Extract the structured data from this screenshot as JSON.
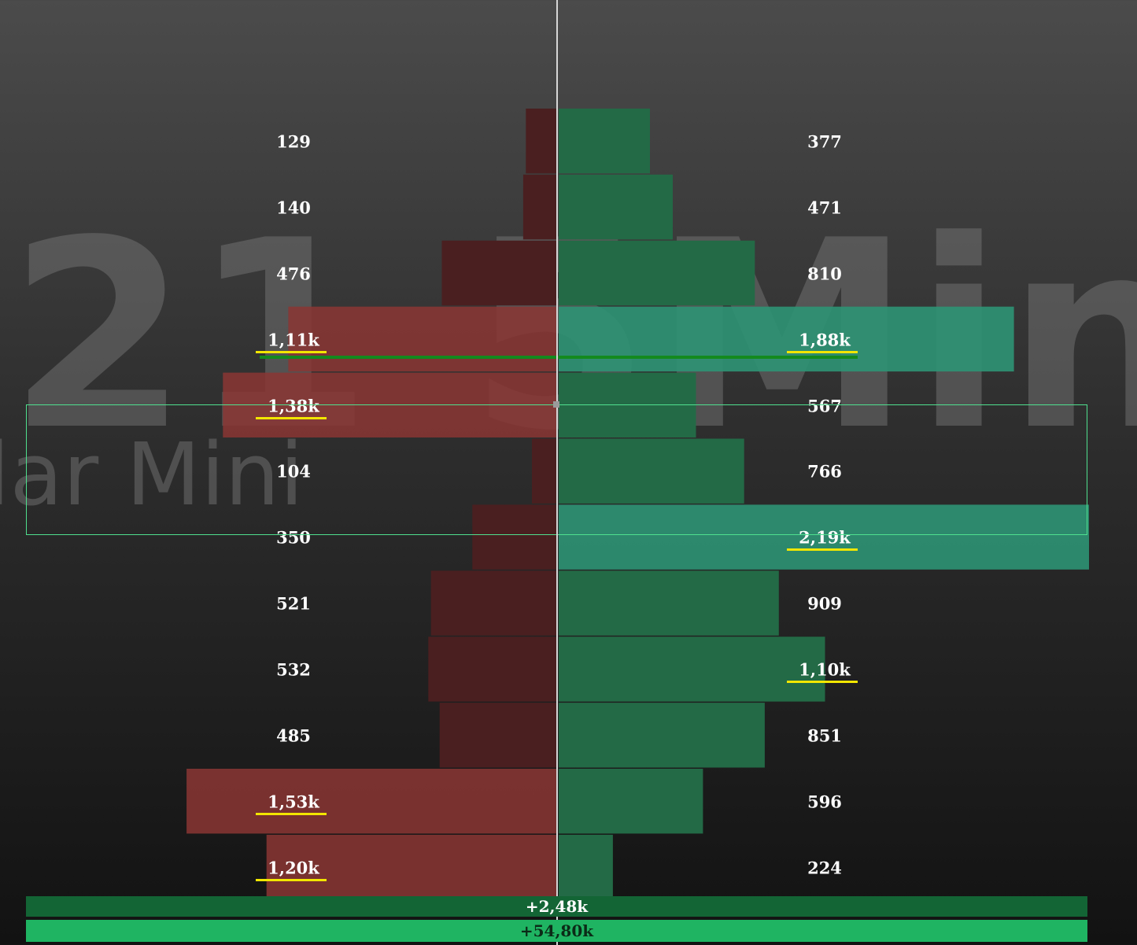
{
  "watermark": {
    "big": "21 5Min",
    "small": "lar Mini"
  },
  "colors": {
    "sell_dark": "#4a1f20",
    "sell_bright": "#8b3634",
    "buy_dark": "#236a46",
    "buy_bright": "#2e9474",
    "poc_line": "#138a1e",
    "value_area_border": "#4fe08e",
    "highlight_underline": "#f2e600",
    "delta_bar": "#136535",
    "total_bar": "#1fb462"
  },
  "chart_data": {
    "type": "bar",
    "orientation": "horizontal",
    "description_type": "volume profile (bid/ask)",
    "levels": [
      {
        "sell": 129,
        "sell_label": "129",
        "buy": 377,
        "buy_label": "377"
      },
      {
        "sell": 140,
        "sell_label": "140",
        "buy": 471,
        "buy_label": "471"
      },
      {
        "sell": 476,
        "sell_label": "476",
        "buy": 810,
        "buy_label": "810"
      },
      {
        "sell": 1110,
        "sell_label": "1,11k",
        "buy": 1880,
        "buy_label": "1,88k",
        "sell_highlight": true,
        "buy_highlight": true,
        "sell_bright": true,
        "buy_bright": true
      },
      {
        "sell": 1380,
        "sell_label": "1,38k",
        "buy": 567,
        "buy_label": "567",
        "sell_highlight": true,
        "sell_bright": true
      },
      {
        "sell": 104,
        "sell_label": "104",
        "buy": 766,
        "buy_label": "766"
      },
      {
        "sell": 350,
        "sell_label": "350",
        "buy": 2190,
        "buy_label": "2,19k",
        "buy_highlight": true,
        "buy_bright": true
      },
      {
        "sell": 521,
        "sell_label": "521",
        "buy": 909,
        "buy_label": "909"
      },
      {
        "sell": 532,
        "sell_label": "532",
        "buy": 1100,
        "buy_label": "1,10k",
        "buy_highlight": true
      },
      {
        "sell": 485,
        "sell_label": "485",
        "buy": 851,
        "buy_label": "851"
      },
      {
        "sell": 1530,
        "sell_label": "1,53k",
        "buy": 596,
        "buy_label": "596",
        "sell_highlight": true,
        "sell_bright": true
      },
      {
        "sell": 1200,
        "sell_label": "1,20k",
        "buy": 224,
        "buy_label": "224",
        "sell_highlight": true,
        "sell_bright": true
      }
    ],
    "max_value": 2190,
    "poc_level_index": 3,
    "value_area_levels": [
      4,
      6
    ],
    "delta_label": "+2,48k",
    "total_label": "+54,80k"
  }
}
